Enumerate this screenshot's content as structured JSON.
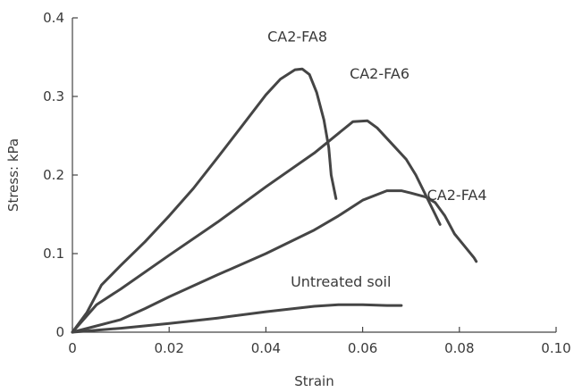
{
  "chart_data": {
    "type": "line",
    "title": "",
    "xlabel": "Strain",
    "ylabel": "Stress: kPa",
    "xlim": [
      0,
      0.1
    ],
    "ylim": [
      0,
      0.4
    ],
    "xticks": [
      0,
      0.02,
      0.04,
      0.06,
      0.08,
      0.1
    ],
    "xtick_labels": [
      "0",
      "0.02",
      "0.04",
      "0.06",
      "0.08",
      "0.10"
    ],
    "yticks": [
      0,
      0.1,
      0.2,
      0.3,
      0.4
    ],
    "ytick_labels": [
      "0",
      "0.1",
      "0.2",
      "0.3",
      "0.4"
    ],
    "grid": false,
    "legend": "none",
    "line_color": "#454545",
    "series": [
      {
        "name": "CA2-FA8",
        "x": [
          0,
          0.003,
          0.006,
          0.01,
          0.015,
          0.02,
          0.025,
          0.03,
          0.035,
          0.04,
          0.043,
          0.046,
          0.0475,
          0.049,
          0.0505,
          0.052,
          0.053,
          0.0535,
          0.0545
        ],
        "y": [
          0,
          0.025,
          0.06,
          0.085,
          0.115,
          0.148,
          0.183,
          0.222,
          0.262,
          0.302,
          0.322,
          0.334,
          0.335,
          0.328,
          0.305,
          0.27,
          0.235,
          0.2,
          0.17
        ]
      },
      {
        "name": "CA2-FA6",
        "x": [
          0,
          0.005,
          0.01,
          0.02,
          0.03,
          0.04,
          0.05,
          0.055,
          0.058,
          0.061,
          0.063,
          0.066,
          0.069,
          0.071,
          0.073,
          0.075,
          0.076
        ],
        "y": [
          0,
          0.035,
          0.055,
          0.098,
          0.14,
          0.185,
          0.228,
          0.253,
          0.268,
          0.269,
          0.26,
          0.24,
          0.22,
          0.2,
          0.175,
          0.15,
          0.137
        ]
      },
      {
        "name": "CA2-FA4",
        "x": [
          0,
          0.005,
          0.01,
          0.015,
          0.02,
          0.03,
          0.04,
          0.05,
          0.055,
          0.06,
          0.065,
          0.068,
          0.07,
          0.073,
          0.075,
          0.077,
          0.079,
          0.081,
          0.083,
          0.0835
        ],
        "y": [
          0,
          0.008,
          0.016,
          0.03,
          0.045,
          0.073,
          0.1,
          0.13,
          0.148,
          0.168,
          0.18,
          0.18,
          0.177,
          0.172,
          0.165,
          0.148,
          0.125,
          0.11,
          0.095,
          0.09
        ]
      },
      {
        "name": "Untreated soil",
        "x": [
          0,
          0.01,
          0.02,
          0.03,
          0.04,
          0.05,
          0.055,
          0.06,
          0.065,
          0.068
        ],
        "y": [
          0,
          0.005,
          0.011,
          0.018,
          0.026,
          0.033,
          0.035,
          0.035,
          0.034,
          0.034
        ]
      }
    ],
    "annotations": [
      {
        "text": "CA2-FA8",
        "x": 0.0465,
        "y": 0.37
      },
      {
        "text": "CA2-FA6",
        "x": 0.0635,
        "y": 0.323
      },
      {
        "text": "CA2-FA4",
        "x": 0.0795,
        "y": 0.168
      },
      {
        "text": "Untreated soil",
        "x": 0.0555,
        "y": 0.058
      }
    ]
  }
}
